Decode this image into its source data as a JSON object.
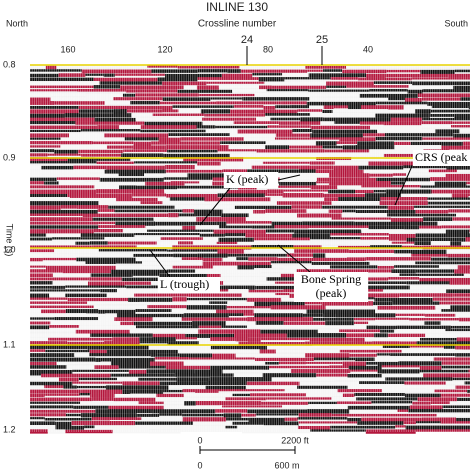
{
  "header": {
    "title": "INLINE 130",
    "subtitle": "Crossline number",
    "left": "North",
    "right": "South"
  },
  "x_ticks": [
    "160",
    "120",
    "24",
    "80",
    "25",
    "40"
  ],
  "y_axis": {
    "label": "Time (s)",
    "ticks": [
      "0.8",
      "0.9",
      "1.0",
      "1.1",
      "1.2"
    ]
  },
  "annotations": {
    "crs": "CRS (peak",
    "k": "K (peak)",
    "l": "L (trough)",
    "bone_spring": [
      "Bone Spring",
      "(peak)"
    ]
  },
  "scale_bar": {
    "feet_start": "0",
    "feet_end": "2200 ft",
    "meters_start": "0",
    "meters_end": "600 m"
  }
}
